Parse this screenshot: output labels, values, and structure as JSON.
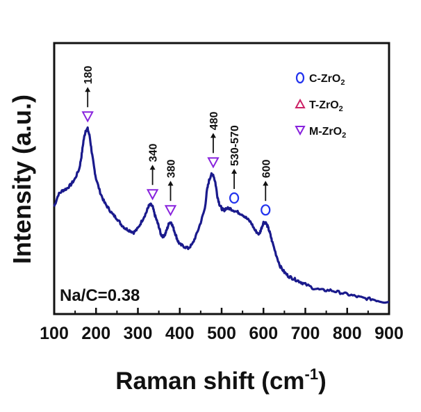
{
  "chart_data": {
    "type": "line",
    "xlabel": "Raman shift (cm",
    "xlabel_sup": "-1",
    "xlabel_close": ")",
    "ylabel": "Intensity (a.u.)",
    "xlim": [
      100,
      900
    ],
    "ylim": [
      0,
      100
    ],
    "x_ticks": [
      "100",
      "200",
      "300",
      "400",
      "500",
      "600",
      "700",
      "800",
      "900"
    ],
    "x_tick_values": [
      100,
      200,
      300,
      400,
      500,
      600,
      700,
      800,
      900
    ],
    "grid": false,
    "legend_position": "top-right",
    "annotation": "Na/C=0.38",
    "series": [
      {
        "color": "#1a1a8c",
        "x": [
          100,
          110,
          120,
          130,
          140,
          150,
          160,
          165,
          170,
          175,
          180,
          185,
          190,
          195,
          200,
          210,
          220,
          230,
          240,
          250,
          260,
          270,
          280,
          290,
          300,
          310,
          320,
          325,
          330,
          335,
          340,
          345,
          350,
          355,
          360,
          365,
          370,
          375,
          380,
          385,
          390,
          395,
          400,
          410,
          420,
          430,
          440,
          450,
          460,
          465,
          470,
          475,
          480,
          485,
          490,
          495,
          500,
          505,
          510,
          520,
          530,
          540,
          550,
          560,
          570,
          580,
          590,
          595,
          600,
          605,
          610,
          615,
          620,
          630,
          640,
          650,
          660,
          670,
          680,
          690,
          700,
          720,
          740,
          760,
          780,
          800,
          820,
          840,
          860,
          880,
          900
        ],
        "y": [
          48,
          54,
          56,
          57,
          59,
          62,
          67,
          73,
          81,
          86,
          87,
          83,
          75,
          68,
          62,
          55,
          50,
          47,
          44,
          42,
          39,
          37,
          36,
          35,
          37,
          41,
          45,
          48,
          49,
          48,
          44,
          41,
          38,
          34,
          33,
          34,
          37,
          40,
          40,
          37,
          34,
          31,
          29,
          28,
          27,
          29,
          34,
          40,
          47,
          56,
          61,
          64,
          64,
          60,
          53,
          49,
          47,
          46,
          47,
          47,
          46,
          45,
          44,
          42,
          40,
          36,
          34,
          37,
          40,
          40,
          38,
          35,
          31,
          24,
          18,
          15,
          13,
          12,
          11,
          10,
          9,
          7,
          6,
          6,
          5,
          4,
          3,
          2,
          1.5,
          0.5,
          0
        ]
      }
    ],
    "peaks": [
      {
        "label": "180",
        "x": 180,
        "marker": "M"
      },
      {
        "label": "340",
        "x": 335,
        "marker": "M"
      },
      {
        "label": "380",
        "x": 378,
        "marker": "M"
      },
      {
        "label": "480",
        "x": 480,
        "marker": "M"
      },
      {
        "label": "530-570",
        "x": 530,
        "marker": "C"
      },
      {
        "label": "600",
        "x": 605,
        "marker": "C"
      }
    ],
    "legend": [
      {
        "symbol": "O",
        "text": "C-ZrO",
        "sub": "2",
        "color": "#2233ee"
      },
      {
        "symbol": "△",
        "text": "T-ZrO",
        "sub": "2",
        "color": "#cc2266"
      },
      {
        "symbol": "▽",
        "text": "M-ZrO",
        "sub": "2",
        "color": "#8822dd"
      }
    ],
    "marker_colors": {
      "C": "#2233ee",
      "M": "#8822dd"
    }
  }
}
